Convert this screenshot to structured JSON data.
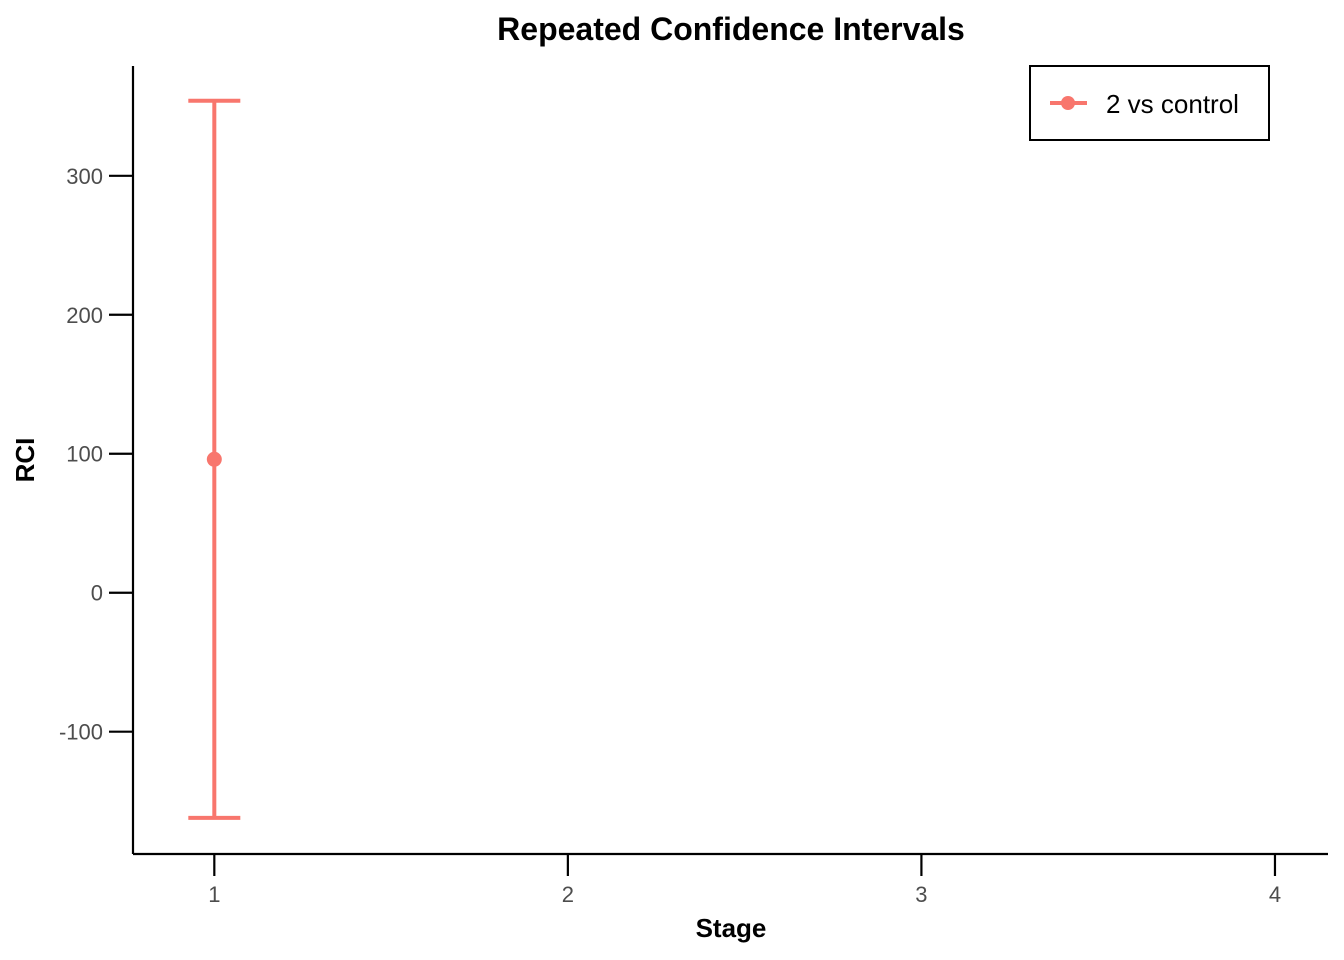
{
  "chart_data": {
    "type": "errorbar",
    "title": "Repeated Confidence Intervals",
    "xlabel": "Stage",
    "ylabel": "RCI",
    "x_ticks": [
      "1",
      "2",
      "3",
      "4"
    ],
    "y_ticks": [
      -100,
      0,
      100,
      200,
      300
    ],
    "xlim": [
      0.77,
      4.15
    ],
    "ylim": [
      -188,
      379
    ],
    "grid": false,
    "legend_position": "top-right",
    "series": [
      {
        "name": "2 vs control",
        "color": "#F8766D",
        "points": [
          {
            "stage": 1,
            "estimate": 96,
            "lower": -162,
            "upper": 354
          }
        ]
      }
    ]
  }
}
